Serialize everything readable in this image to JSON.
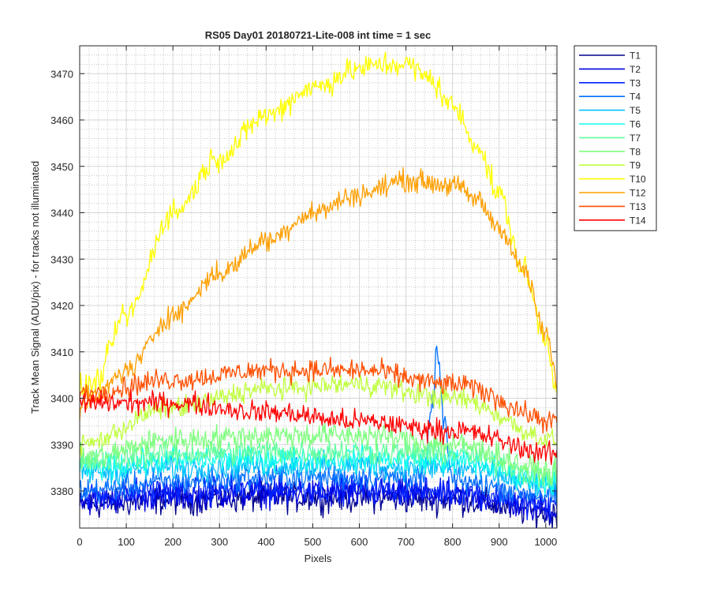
{
  "chart_data": {
    "type": "line",
    "title": "RS05 Day01 20180721-Lite-008 int time = 1 sec",
    "xlabel": "Pixels",
    "ylabel": "Track Mean Signal (ADU/pix) - for tracks not illuminated",
    "xlim": [
      0,
      1024
    ],
    "ylim": [
      3372,
      3476
    ],
    "x_ticks": [
      0,
      100,
      200,
      300,
      400,
      500,
      600,
      700,
      800,
      900,
      1000
    ],
    "y_ticks": [
      3380,
      3390,
      3400,
      3410,
      3420,
      3430,
      3440,
      3450,
      3460,
      3470
    ],
    "grid": true,
    "legend_position": "outside-right",
    "series": [
      {
        "name": "T1",
        "color": "#00008f",
        "noise": 4.5,
        "x": [
          0,
          200,
          400,
          600,
          800,
          1024
        ],
        "y": [
          3377,
          3378,
          3378.5,
          3378.5,
          3378,
          3375
        ]
      },
      {
        "name": "T2",
        "color": "#0000df",
        "noise": 4.5,
        "x": [
          0,
          200,
          400,
          600,
          800,
          1024
        ],
        "y": [
          3378,
          3379,
          3379.5,
          3379.5,
          3379,
          3376
        ]
      },
      {
        "name": "T3",
        "color": "#0020ff",
        "noise": 4.5,
        "x": [
          0,
          200,
          400,
          600,
          800,
          1024
        ],
        "y": [
          3379,
          3380,
          3380.5,
          3380.5,
          3380,
          3377
        ]
      },
      {
        "name": "T4",
        "color": "#0070ff",
        "noise": 4.0,
        "x": [
          0,
          200,
          400,
          600,
          740,
          755,
          768,
          780,
          800,
          1024
        ],
        "y": [
          3380,
          3382,
          3383,
          3383,
          3383,
          3398,
          3410,
          3396,
          3382,
          3379
        ]
      },
      {
        "name": "T5",
        "color": "#00c0ff",
        "noise": 4.0,
        "x": [
          0,
          200,
          400,
          600,
          800,
          1024
        ],
        "y": [
          3384,
          3385,
          3385.5,
          3385.5,
          3385,
          3381
        ]
      },
      {
        "name": "T6",
        "color": "#10ffef",
        "noise": 4.0,
        "x": [
          0,
          200,
          400,
          600,
          800,
          1024
        ],
        "y": [
          3385,
          3386.5,
          3387,
          3387,
          3386.5,
          3382
        ]
      },
      {
        "name": "T7",
        "color": "#60ff9f",
        "noise": 4.0,
        "x": [
          0,
          200,
          400,
          600,
          800,
          1024
        ],
        "y": [
          3386,
          3388,
          3388.5,
          3388.5,
          3388,
          3383
        ]
      },
      {
        "name": "T8",
        "color": "#80ff7f",
        "noise": 4.0,
        "x": [
          0,
          200,
          400,
          600,
          800,
          1024
        ],
        "y": [
          3387,
          3391,
          3392,
          3392,
          3390,
          3384
        ]
      },
      {
        "name": "T9",
        "color": "#c0ff3f",
        "noise": 3.5,
        "x": [
          0,
          200,
          400,
          600,
          800,
          1024
        ],
        "y": [
          3390,
          3398,
          3402,
          3403,
          3400,
          3391
        ]
      },
      {
        "name": "T10",
        "color": "#ffff00",
        "noise": 4.0,
        "x": [
          0,
          30,
          100,
          200,
          300,
          400,
          500,
          600,
          650,
          700,
          750,
          800,
          850,
          900,
          950,
          1000,
          1024
        ],
        "y": [
          3402,
          3403,
          3418,
          3440,
          3452,
          3461,
          3467,
          3471,
          3472,
          3472,
          3469,
          3463,
          3455,
          3444,
          3428,
          3413,
          3402
        ]
      },
      {
        "name": "T12",
        "color": "#ff9f00",
        "noise": 3.5,
        "x": [
          0,
          30,
          100,
          200,
          300,
          400,
          500,
          600,
          700,
          800,
          850,
          900,
          950,
          1000,
          1024
        ],
        "y": [
          3398,
          3400,
          3406,
          3418,
          3427,
          3434,
          3440,
          3444,
          3447,
          3446,
          3443,
          3437,
          3428,
          3414,
          3404
        ]
      },
      {
        "name": "T13",
        "color": "#ff4f00",
        "noise": 3.5,
        "x": [
          0,
          200,
          400,
          600,
          800,
          1024
        ],
        "y": [
          3401,
          3404,
          3406,
          3406,
          3403,
          3395
        ]
      },
      {
        "name": "T14",
        "color": "#ff0000",
        "noise": 3.5,
        "x": [
          0,
          200,
          400,
          600,
          800,
          1024
        ],
        "y": [
          3399,
          3399,
          3397,
          3395,
          3393,
          3388
        ]
      }
    ]
  }
}
